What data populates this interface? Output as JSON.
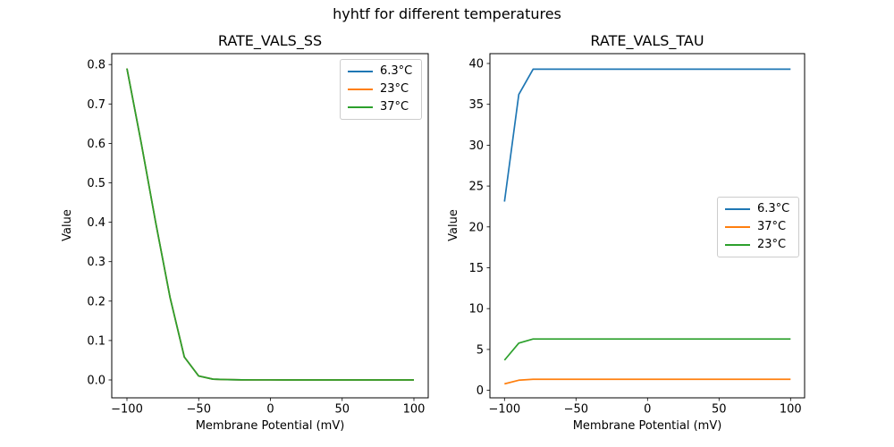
{
  "figure": {
    "suptitle": "hyhtf for different temperatures",
    "background": "#ffffff"
  },
  "palette": {
    "blue": "#1f77b4",
    "orange": "#ff7f0e",
    "green": "#2ca02c"
  },
  "chart_data": [
    {
      "type": "line",
      "title": "RATE_VALS_SS",
      "xlabel": "Membrane Potential (mV)",
      "ylabel": "Value",
      "xlim": [
        -110,
        110
      ],
      "ylim": [
        -0.045,
        0.828
      ],
      "grid": false,
      "legend": {
        "position": "upper right",
        "entries": [
          {
            "label": "6.3°C",
            "color": "#1f77b4"
          },
          {
            "label": "23°C",
            "color": "#ff7f0e"
          },
          {
            "label": "37°C",
            "color": "#2ca02c"
          }
        ]
      },
      "xticks": [
        {
          "v": -100,
          "label": "−100"
        },
        {
          "v": -50,
          "label": "−50"
        },
        {
          "v": 0,
          "label": "0"
        },
        {
          "v": 50,
          "label": "50"
        },
        {
          "v": 100,
          "label": "100"
        }
      ],
      "yticks": [
        {
          "v": 0.0,
          "label": "0.0"
        },
        {
          "v": 0.1,
          "label": "0.1"
        },
        {
          "v": 0.2,
          "label": "0.2"
        },
        {
          "v": 0.3,
          "label": "0.3"
        },
        {
          "v": 0.4,
          "label": "0.4"
        },
        {
          "v": 0.5,
          "label": "0.5"
        },
        {
          "v": 0.6,
          "label": "0.6"
        },
        {
          "v": 0.7,
          "label": "0.7"
        },
        {
          "v": 0.8,
          "label": "0.8"
        }
      ],
      "x": [
        -100,
        -90,
        -80,
        -70,
        -60,
        -50,
        -40,
        -30,
        -20,
        -10,
        0,
        10,
        20,
        30,
        40,
        50,
        60,
        70,
        80,
        90,
        100
      ],
      "series": [
        {
          "name": "6.3°C",
          "color": "#1f77b4",
          "values": [
            0.79,
            0.6,
            0.4,
            0.21,
            0.058,
            0.01,
            0.002,
            0.0008,
            0.0003,
            0.0001,
            0.0001,
            0,
            0,
            0,
            0,
            0,
            0,
            0,
            0,
            0,
            0
          ]
        },
        {
          "name": "23°C",
          "color": "#ff7f0e",
          "values": [
            0.79,
            0.6,
            0.4,
            0.21,
            0.058,
            0.01,
            0.002,
            0.0008,
            0.0003,
            0.0001,
            0.0001,
            0,
            0,
            0,
            0,
            0,
            0,
            0,
            0,
            0,
            0
          ]
        },
        {
          "name": "37°C",
          "color": "#2ca02c",
          "values": [
            0.79,
            0.6,
            0.4,
            0.21,
            0.058,
            0.01,
            0.002,
            0.0008,
            0.0003,
            0.0001,
            0.0001,
            0,
            0,
            0,
            0,
            0,
            0,
            0,
            0,
            0,
            0
          ]
        }
      ]
    },
    {
      "type": "line",
      "title": "RATE_VALS_TAU",
      "xlabel": "Membrane Potential (mV)",
      "ylabel": "Value",
      "xlim": [
        -110,
        110
      ],
      "ylim": [
        -0.95,
        41.2
      ],
      "grid": false,
      "legend": {
        "position": "center right",
        "entries": [
          {
            "label": "6.3°C",
            "color": "#1f77b4"
          },
          {
            "label": "37°C",
            "color": "#ff7f0e"
          },
          {
            "label": "23°C",
            "color": "#2ca02c"
          }
        ]
      },
      "xticks": [
        {
          "v": -100,
          "label": "−100"
        },
        {
          "v": -50,
          "label": "−50"
        },
        {
          "v": 0,
          "label": "0"
        },
        {
          "v": 50,
          "label": "50"
        },
        {
          "v": 100,
          "label": "100"
        }
      ],
      "yticks": [
        {
          "v": 0,
          "label": "0"
        },
        {
          "v": 5,
          "label": "5"
        },
        {
          "v": 10,
          "label": "10"
        },
        {
          "v": 15,
          "label": "15"
        },
        {
          "v": 20,
          "label": "20"
        },
        {
          "v": 25,
          "label": "25"
        },
        {
          "v": 30,
          "label": "30"
        },
        {
          "v": 35,
          "label": "35"
        },
        {
          "v": 40,
          "label": "40"
        }
      ],
      "x": [
        -100,
        -90,
        -80,
        -70,
        -60,
        -50,
        -40,
        -30,
        -20,
        -10,
        0,
        10,
        20,
        30,
        40,
        50,
        60,
        70,
        80,
        90,
        100
      ],
      "series": [
        {
          "name": "6.3°C",
          "color": "#1f77b4",
          "values": [
            23.1,
            36.2,
            39.3,
            39.3,
            39.3,
            39.3,
            39.3,
            39.3,
            39.3,
            39.3,
            39.3,
            39.3,
            39.3,
            39.3,
            39.3,
            39.3,
            39.3,
            39.3,
            39.3,
            39.3,
            39.3
          ]
        },
        {
          "name": "37°C",
          "color": "#ff7f0e",
          "values": [
            0.79,
            1.24,
            1.35,
            1.35,
            1.35,
            1.35,
            1.35,
            1.35,
            1.35,
            1.35,
            1.35,
            1.35,
            1.35,
            1.35,
            1.35,
            1.35,
            1.35,
            1.35,
            1.35,
            1.35,
            1.35
          ]
        },
        {
          "name": "23°C",
          "color": "#2ca02c",
          "values": [
            3.69,
            5.78,
            6.28,
            6.28,
            6.28,
            6.28,
            6.28,
            6.28,
            6.28,
            6.28,
            6.28,
            6.28,
            6.28,
            6.28,
            6.28,
            6.28,
            6.28,
            6.28,
            6.28,
            6.28,
            6.28
          ]
        }
      ]
    }
  ]
}
